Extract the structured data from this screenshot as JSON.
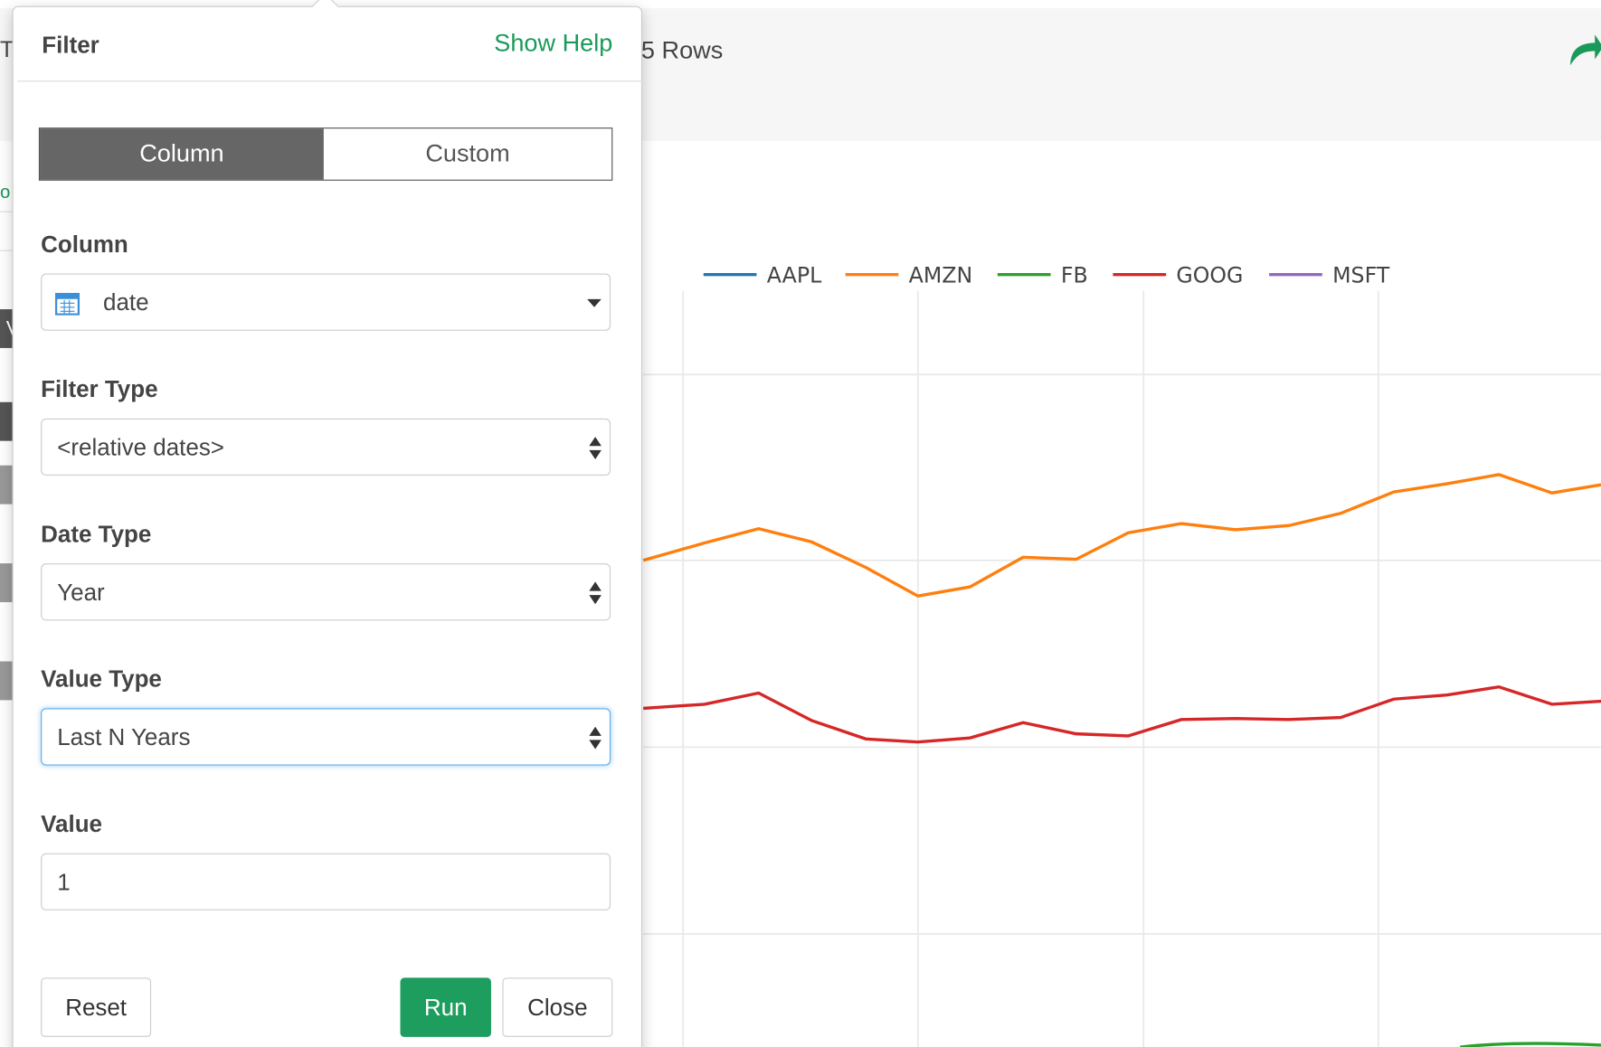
{
  "background": {
    "left_fragments": [
      "T",
      "o",
      "V"
    ],
    "row_count": "5 Rows",
    "legend": [
      {
        "name": "AAPL",
        "color": "#1f77b4"
      },
      {
        "name": "AMZN",
        "color": "#ff7f0e"
      },
      {
        "name": "FB",
        "color": "#2ca02c"
      },
      {
        "name": "GOOG",
        "color": "#d62728"
      },
      {
        "name": "MSFT",
        "color": "#9467bd"
      }
    ]
  },
  "filter": {
    "title": "Filter",
    "help": "Show Help",
    "tabs": [
      "Column",
      "Custom"
    ],
    "fields": [
      {
        "label": "Column",
        "value": "date"
      },
      {
        "label": "Filter Type",
        "value": "<relative dates>"
      },
      {
        "label": "Date Type",
        "value": "Year"
      },
      {
        "label": "Value Type",
        "value": "Last N Years"
      },
      {
        "label": "Value",
        "value": "1"
      }
    ],
    "buttons": {
      "reset": "Reset",
      "run": "Run",
      "close": "Close"
    }
  }
}
